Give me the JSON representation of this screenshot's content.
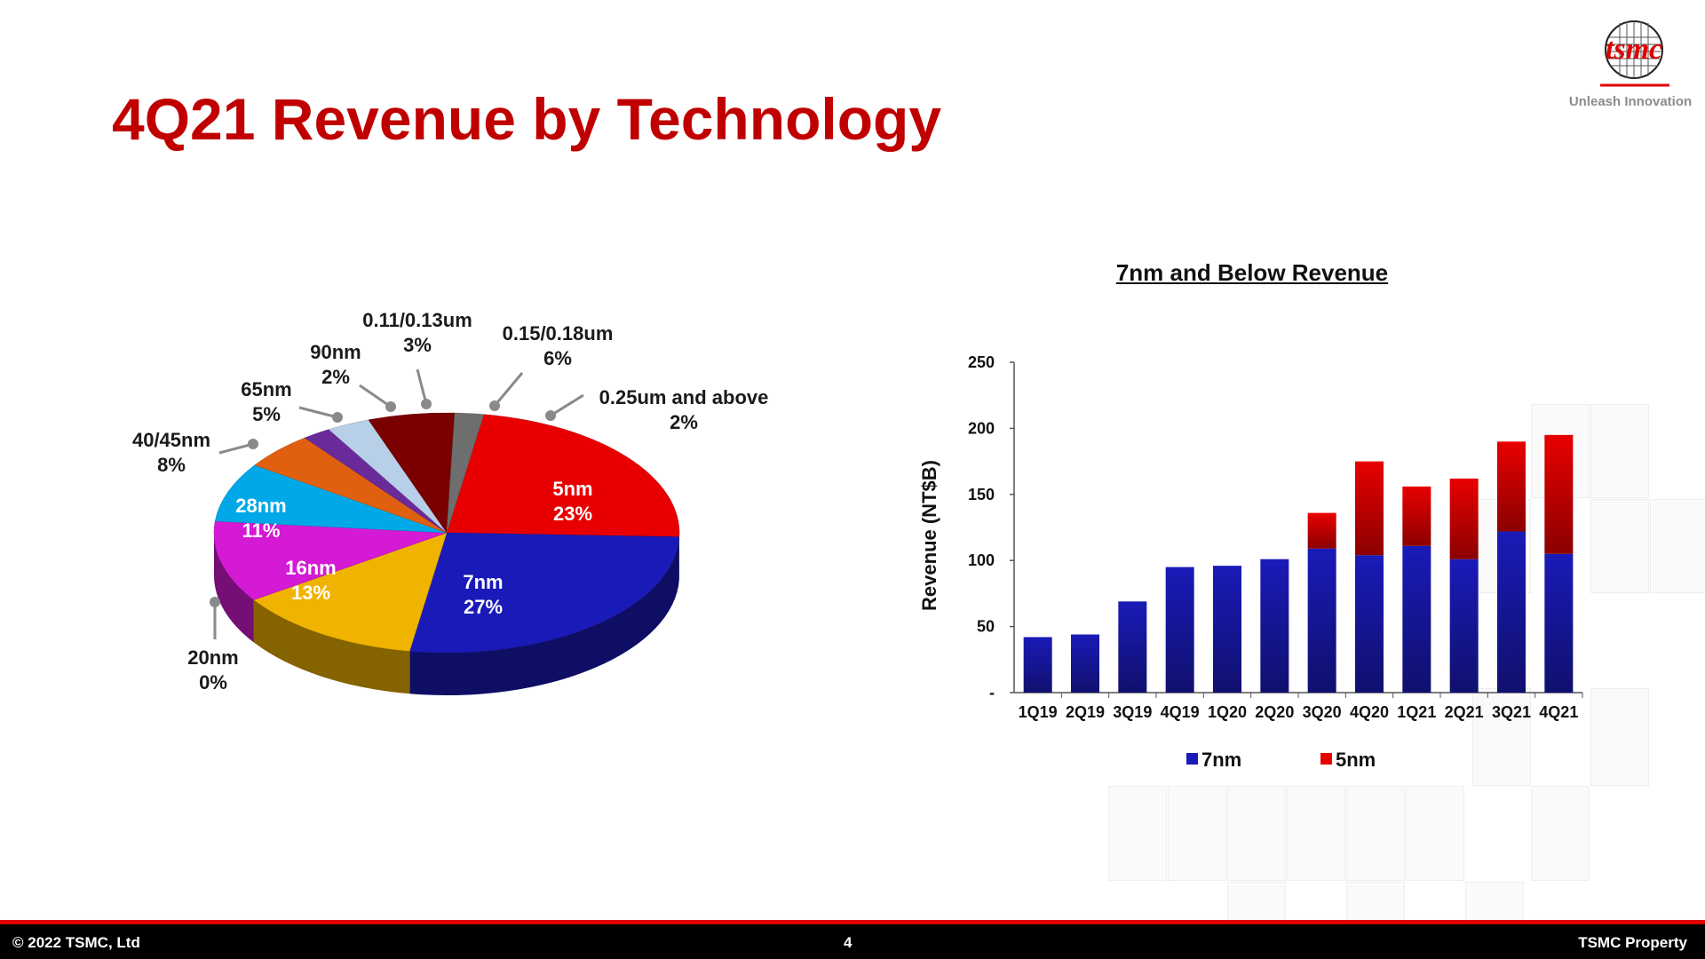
{
  "slide": {
    "title": "4Q21 Revenue by Technology",
    "logo_text": "tsmc",
    "tagline": "Unleash Innovation"
  },
  "footer": {
    "copyright": "© 2022 TSMC, Ltd",
    "page_number": "4",
    "property": "TSMC Property"
  },
  "colors": {
    "title": "#c00000",
    "bar_7nm": "#1a1ab8",
    "bar_5nm": "#e80000",
    "footer_bg": "#000000",
    "footer_accent": "#e00000"
  },
  "chart_data": [
    {
      "type": "pie",
      "title": "4Q21 Revenue by Technology",
      "slices": [
        {
          "name": "5nm",
          "pct_label": "23%",
          "value": 23,
          "color": "#e80000"
        },
        {
          "name": "7nm",
          "pct_label": "27%",
          "value": 27,
          "color": "#1a1ab8"
        },
        {
          "name": "16nm",
          "pct_label": "13%",
          "value": 13,
          "color": "#f0b400"
        },
        {
          "name": "20nm",
          "pct_label": "0%",
          "value": 0,
          "color": "#9a9a9a"
        },
        {
          "name": "28nm",
          "pct_label": "11%",
          "value": 11,
          "color": "#d41ad4"
        },
        {
          "name": "40/45nm",
          "pct_label": "8%",
          "value": 8,
          "color": "#00a8e8"
        },
        {
          "name": "65nm",
          "pct_label": "5%",
          "value": 5,
          "color": "#e06010"
        },
        {
          "name": "90nm",
          "pct_label": "2%",
          "value": 2,
          "color": "#6a2a9a"
        },
        {
          "name": "0.11/0.13um",
          "pct_label": "3%",
          "value": 3,
          "color": "#b8cfe8"
        },
        {
          "name": "0.15/0.18um",
          "pct_label": "6%",
          "value": 6,
          "color": "#7a0000"
        },
        {
          "name": "0.25um and above",
          "pct_label": "2%",
          "value": 2,
          "color": "#6e6e6e"
        }
      ]
    },
    {
      "type": "bar",
      "stacked": true,
      "title": "7nm and Below Revenue",
      "xlabel": "",
      "ylabel": "Revenue (NT$B)",
      "ylim": [
        0,
        250
      ],
      "yticks": [
        "-",
        "50",
        "100",
        "150",
        "200",
        "250"
      ],
      "categories": [
        "1Q19",
        "2Q19",
        "3Q19",
        "4Q19",
        "1Q20",
        "2Q20",
        "3Q20",
        "4Q20",
        "1Q21",
        "2Q21",
        "3Q21",
        "4Q21"
      ],
      "series": [
        {
          "name": "7nm",
          "color": "#1a1ab8",
          "values": [
            42,
            44,
            69,
            95,
            96,
            101,
            109,
            104,
            111,
            101,
            122,
            105
          ]
        },
        {
          "name": "5nm",
          "color": "#e80000",
          "values": [
            0,
            0,
            0,
            0,
            0,
            0,
            27,
            71,
            45,
            61,
            68,
            90
          ]
        }
      ],
      "legend": "bottom"
    }
  ]
}
